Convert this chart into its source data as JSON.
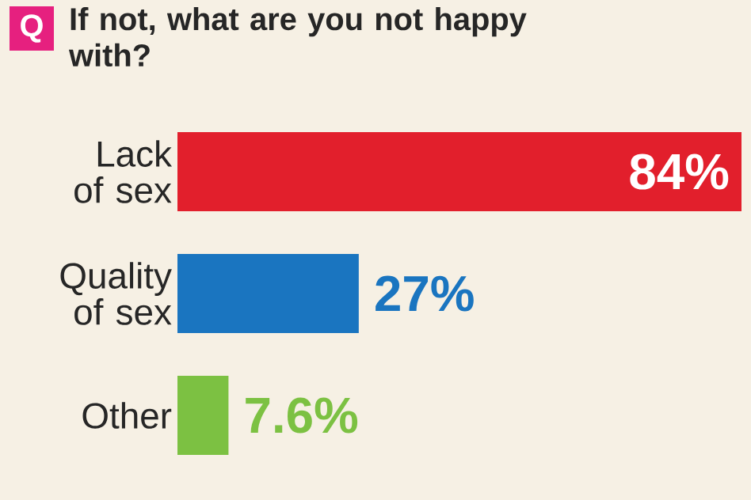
{
  "chart_data": {
    "type": "bar",
    "orientation": "horizontal",
    "title": "If not, what are you not happy with?",
    "annotations": [
      "Q"
    ],
    "categories": [
      "Lack of sex",
      "Quality of sex",
      "Other"
    ],
    "values": [
      84,
      27,
      7.6
    ],
    "value_labels": [
      "84%",
      "27%",
      "7.6%"
    ],
    "colors": [
      "#e21f2c",
      "#1a75c0",
      "#7cc142"
    ]
  }
}
